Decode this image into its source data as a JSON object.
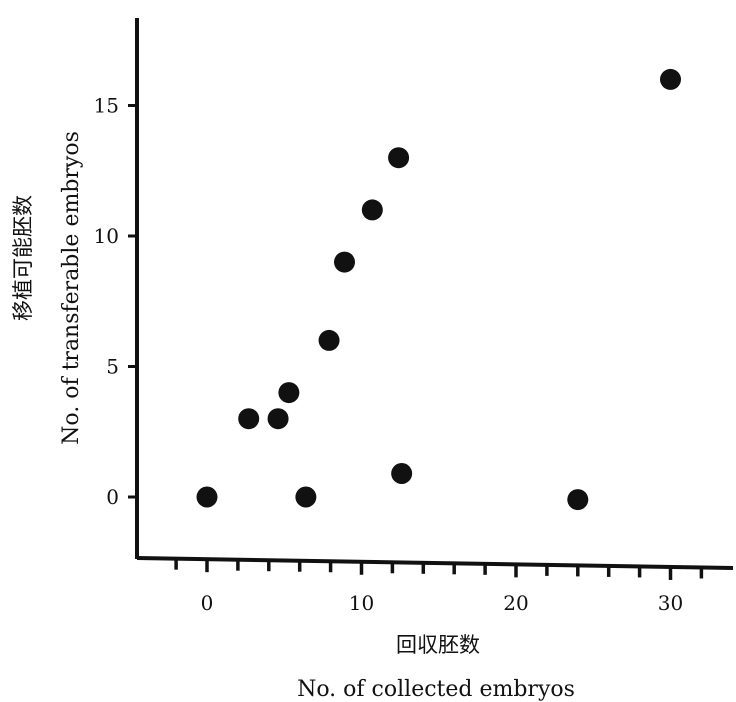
{
  "chart_data": {
    "type": "scatter",
    "title": "",
    "xlabel_jp": "回収胚数",
    "xlabel": "No. of collected embryos",
    "ylabel_jp": "移植可能胚数",
    "ylabel": "No. of transferable embryos",
    "xlim": [
      -4.5,
      35
    ],
    "ylim": [
      -2.3,
      18.5
    ],
    "x_ticks": [
      0,
      10,
      20,
      30
    ],
    "y_ticks": [
      0,
      5,
      10,
      15
    ],
    "x_tick_labels": [
      "0",
      "10",
      "20",
      "30"
    ],
    "y_tick_labels": [
      "0",
      "5",
      "10",
      "15"
    ],
    "grid": false,
    "marker_color": "#111111",
    "series": [
      {
        "points": [
          {
            "x": 0,
            "y": 0
          },
          {
            "x": 2.7,
            "y": 3
          },
          {
            "x": 4.6,
            "y": 3
          },
          {
            "x": 5.3,
            "y": 4
          },
          {
            "x": 6.4,
            "y": 0
          },
          {
            "x": 7.9,
            "y": 6
          },
          {
            "x": 8.9,
            "y": 9
          },
          {
            "x": 10.7,
            "y": 11
          },
          {
            "x": 12.4,
            "y": 13
          },
          {
            "x": 12.6,
            "y": 0.9
          },
          {
            "x": 24.0,
            "y": -0.1
          },
          {
            "x": 30.0,
            "y": 16
          }
        ]
      }
    ]
  }
}
